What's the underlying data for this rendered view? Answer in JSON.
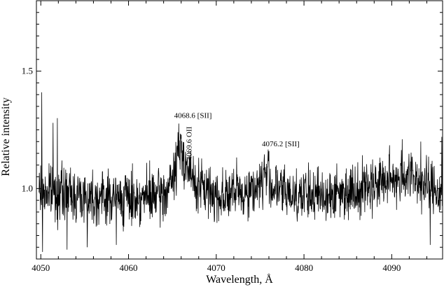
{
  "chart_data": {
    "type": "line",
    "title": "",
    "xlabel": "Wavelength, Å",
    "ylabel": "Relative intensity",
    "xlim": [
      4049.5,
      4095.8
    ],
    "ylim": [
      0.7,
      1.8
    ],
    "x_ticks": [
      4050,
      4060,
      4070,
      4080,
      4090
    ],
    "x_tick_labels": [
      "4050",
      "4060",
      "4070",
      "4080",
      "4090"
    ],
    "y_ticks": [
      1.0,
      1.5
    ],
    "y_tick_labels": [
      "1.0",
      "1.5"
    ],
    "grid": false,
    "legend": "none",
    "color": "#000000",
    "noise_amplitude": 0.07,
    "baseline": [
      [
        4049.8,
        0.99
      ],
      [
        4052,
        0.98
      ],
      [
        4055,
        0.97
      ],
      [
        4058,
        0.96
      ],
      [
        4061,
        0.96
      ],
      [
        4064,
        0.97
      ],
      [
        4065.2,
        1.05
      ],
      [
        4065.7,
        1.17
      ],
      [
        4066.3,
        1.14
      ],
      [
        4066.9,
        1.07
      ],
      [
        4067.5,
        1.02
      ],
      [
        4068.5,
        1.0
      ],
      [
        4070,
        0.97
      ],
      [
        4072,
        0.98
      ],
      [
        4074,
        0.99
      ],
      [
        4075.2,
        1.03
      ],
      [
        4075.7,
        1.07
      ],
      [
        4076.3,
        1.01
      ],
      [
        4078,
        0.98
      ],
      [
        4081,
        0.97
      ],
      [
        4084,
        0.98
      ],
      [
        4087,
        1.01
      ],
      [
        4090,
        1.04
      ],
      [
        4092,
        1.06
      ],
      [
        4094,
        1.01
      ],
      [
        4095.8,
        0.98
      ]
    ],
    "spikes": [
      [
        4050.1,
        1.41
      ],
      [
        4050.2,
        0.73
      ],
      [
        4051.4,
        1.28
      ],
      [
        4051.9,
        1.3
      ],
      [
        4053.0,
        0.74
      ],
      [
        4055.3,
        0.75
      ],
      [
        4058.6,
        0.76
      ],
      [
        4066.0,
        1.23
      ],
      [
        4067.1,
        1.16
      ],
      [
        4076.0,
        1.16
      ],
      [
        4091.2,
        1.21
      ],
      [
        4093.3,
        1.2
      ],
      [
        4094.4,
        0.76
      ],
      [
        4095.7,
        1.22
      ]
    ],
    "annotations": [
      {
        "text": "4068.6 [SII]",
        "x": 4065.2,
        "y": 1.3,
        "rotation": 0
      },
      {
        "text": "4069.6 OII",
        "x": 4067.2,
        "y": 1.12,
        "rotation": -90
      },
      {
        "text": "4076.2 [SII]",
        "x": 4075.2,
        "y": 1.18,
        "rotation": 0
      }
    ]
  }
}
